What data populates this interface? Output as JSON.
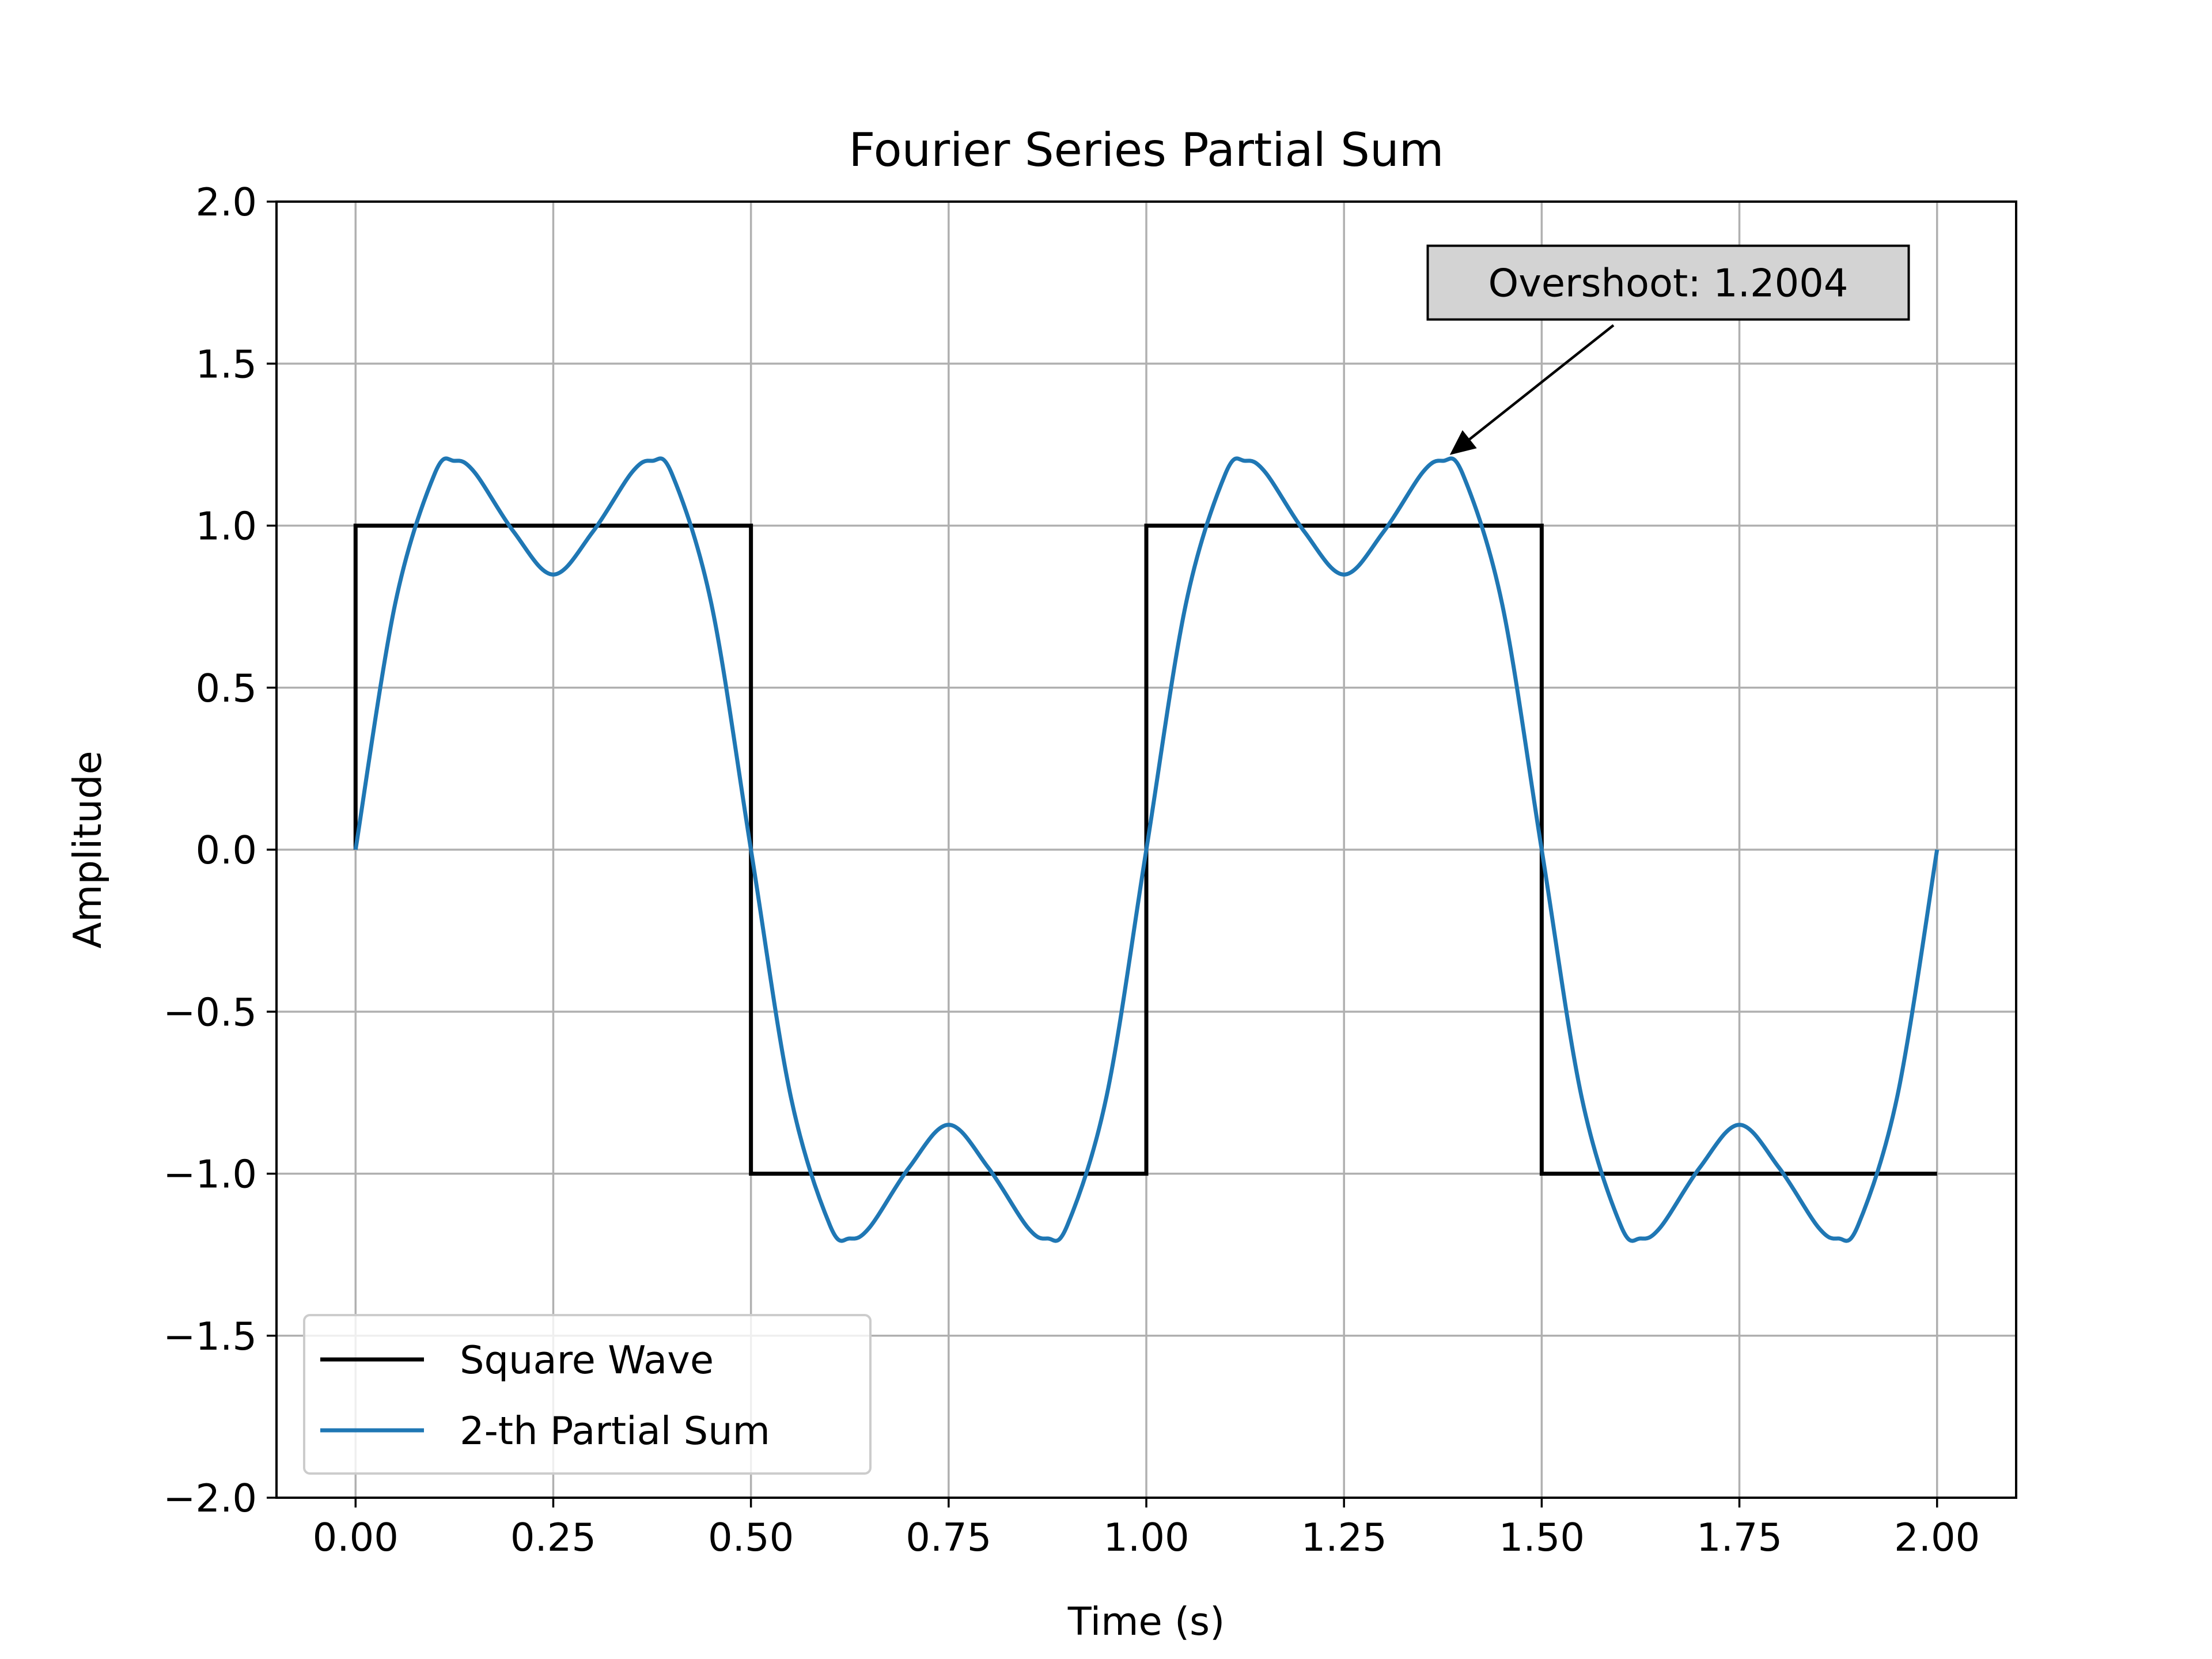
{
  "chart_data": {
    "type": "line",
    "title": "Fourier Series Partial Sum",
    "xlabel": "Time (s)",
    "ylabel": "Amplitude",
    "xlim": [
      -0.1,
      2.1
    ],
    "ylim": [
      -2.0,
      2.0
    ],
    "x_ticks": [
      0.0,
      0.25,
      0.5,
      0.75,
      1.0,
      1.25,
      1.5,
      1.75,
      2.0
    ],
    "x_tick_labels": [
      "0.00",
      "0.25",
      "0.50",
      "0.75",
      "1.00",
      "1.25",
      "1.50",
      "1.75",
      "2.00"
    ],
    "y_ticks": [
      -2.0,
      -1.5,
      -1.0,
      -0.5,
      0.0,
      0.5,
      1.0,
      1.5,
      2.0
    ],
    "y_tick_labels": [
      "−2.0",
      "−1.5",
      "−1.0",
      "−0.5",
      "0.0",
      "0.5",
      "1.0",
      "1.5",
      "2.0"
    ],
    "grid": true,
    "legend_position": "lower-left",
    "series": [
      {
        "name": "Square Wave",
        "color": "#000000",
        "x": [
          0.0,
          0.0,
          0.5,
          0.5,
          1.0,
          1.0,
          1.5,
          1.5,
          2.0
        ],
        "y": [
          0.0,
          1.0,
          1.0,
          -1.0,
          -1.0,
          1.0,
          1.0,
          -1.0,
          -1.0
        ]
      },
      {
        "name": "2-th Partial Sum",
        "color": "#1f77b4",
        "x": [
          0.0,
          0.05,
          0.1,
          0.125,
          0.15,
          0.2,
          0.25,
          0.3,
          0.35,
          0.375,
          0.4,
          0.45,
          0.5,
          0.55,
          0.6,
          0.625,
          0.65,
          0.7,
          0.75,
          0.8,
          0.85,
          0.875,
          0.9,
          0.95,
          1.0,
          1.05,
          1.1,
          1.125,
          1.15,
          1.2,
          1.25,
          1.3,
          1.35,
          1.375,
          1.4,
          1.45,
          1.5,
          1.55,
          1.6,
          1.625,
          1.65,
          1.7,
          1.75,
          1.8,
          1.85,
          1.875,
          1.9,
          1.95,
          2.0
        ],
        "y": [
          0.0,
          0.758,
          1.16,
          1.2,
          1.166,
          0.981,
          0.849,
          0.981,
          1.166,
          1.2,
          1.16,
          0.758,
          0.0,
          -0.758,
          -1.16,
          -1.2,
          -1.166,
          -0.981,
          -0.849,
          -0.981,
          -1.166,
          -1.2,
          -1.16,
          -0.758,
          0.0,
          0.758,
          1.16,
          1.2,
          1.166,
          0.981,
          0.849,
          0.981,
          1.166,
          1.2,
          1.16,
          0.758,
          0.0,
          -0.758,
          -1.16,
          -1.2,
          -1.166,
          -0.981,
          -0.849,
          -0.981,
          -1.166,
          -1.2,
          -1.16,
          -0.758,
          0.0
        ]
      }
    ],
    "annotation": {
      "text": "Overshoot: 1.2004",
      "x": 1.375,
      "y": 1.2004,
      "text_x": 1.66,
      "text_y": 1.75,
      "box_color": "#d3d3d3"
    }
  }
}
